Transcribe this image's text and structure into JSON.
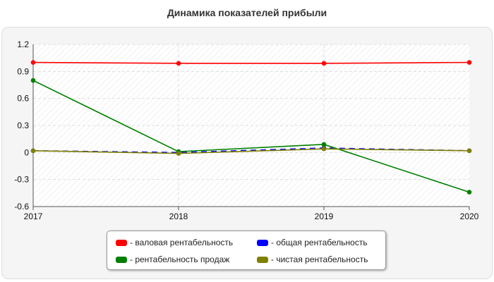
{
  "chart_data": {
    "type": "line",
    "title": "Динамика показателей прибыли",
    "x": [
      "2017",
      "2018",
      "2019",
      "2020"
    ],
    "ylim": [
      -0.6,
      1.2
    ],
    "yticks": [
      "1.2",
      "0.9",
      "0.6",
      "0.3",
      "0",
      "-0.3",
      "-0.6"
    ],
    "ytick_values": [
      1.2,
      0.9,
      0.6,
      0.3,
      0,
      -0.3,
      -0.6
    ],
    "grid": true,
    "legend_position": "bottom",
    "series": [
      {
        "name": "- валовая рентабельность",
        "color": "#ff0000",
        "values": [
          1.0,
          0.99,
          0.99,
          1.0
        ]
      },
      {
        "name": "- общая рентабельность",
        "color": "#0000ff",
        "values": [
          0.02,
          0.0,
          0.05,
          0.02
        ]
      },
      {
        "name": "- рентабельность продаж",
        "color": "#008000",
        "values": [
          0.8,
          0.01,
          0.09,
          -0.44
        ]
      },
      {
        "name": "- чистая рентабельность",
        "color": "#808000",
        "values": [
          0.02,
          -0.01,
          0.04,
          0.02
        ]
      }
    ]
  }
}
